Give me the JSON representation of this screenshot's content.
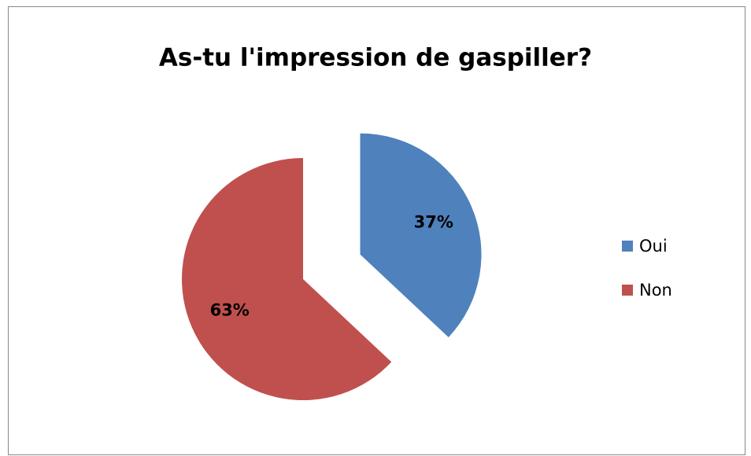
{
  "chart_data": {
    "type": "pie",
    "title": "As-tu l'impression de gaspiller?",
    "categories": [
      "Oui",
      "Non"
    ],
    "values": [
      37,
      63
    ],
    "value_labels": [
      "37%",
      "63%"
    ],
    "colors": [
      "#4f81bd",
      "#c0504d"
    ],
    "legend": "right"
  }
}
